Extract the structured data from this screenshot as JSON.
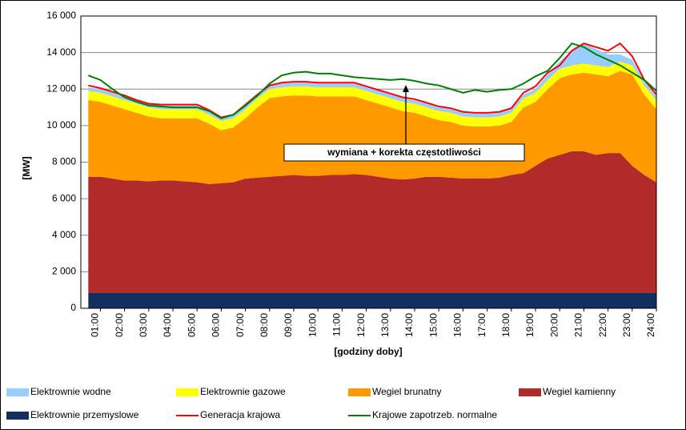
{
  "chart_data": {
    "type": "area",
    "stacked": true,
    "ylabel": "[MW]",
    "xlabel": "[godziny doby]",
    "annotations": [
      "wymiana + korekta częstotliwości"
    ],
    "grid": true,
    "legend": "bottom",
    "ylim": [
      0,
      16000
    ],
    "yticks": [
      0,
      {
        "value": 2000,
        "label": "2 000"
      },
      {
        "value": 4000,
        "label": "4 000"
      },
      {
        "value": 6000,
        "label": "6 000"
      },
      {
        "value": 8000,
        "label": "8 000"
      },
      {
        "value": 10000,
        "label": "10 000"
      },
      {
        "value": 12000,
        "label": "12 000"
      },
      {
        "value": 14000,
        "label": "14 000"
      },
      {
        "value": 16000,
        "label": "16 000"
      }
    ],
    "categories": [
      null,
      "01:00",
      null,
      "02:00",
      null,
      "03:00",
      null,
      "04:00",
      null,
      "05:00",
      null,
      "06:00",
      null,
      "07:00",
      null,
      "08:00",
      null,
      "09:00",
      null,
      "10:00",
      null,
      "11:00",
      null,
      "12:00",
      null,
      "13:00",
      null,
      "14:00",
      null,
      "15:00",
      null,
      "16:00",
      null,
      "17:00",
      null,
      "18:00",
      null,
      "19:00",
      null,
      "20:00",
      null,
      "21:00",
      null,
      "22:00",
      null,
      "23:00",
      null,
      "24:00"
    ],
    "series": [
      {
        "name": "Elektrownie wodne",
        "color": "#99ccff",
        "kind": "area",
        "stack_order": 4,
        "values": [
          200,
          200,
          200,
          200,
          200,
          200,
          200,
          200,
          200,
          200,
          200,
          200,
          200,
          200,
          200,
          200,
          200,
          200,
          200,
          200,
          200,
          200,
          200,
          200,
          200,
          200,
          200,
          200,
          200,
          200,
          200,
          200,
          200,
          200,
          200,
          200,
          200,
          200,
          300,
          400,
          800,
          1100,
          900,
          700,
          400,
          300,
          200,
          200
        ]
      },
      {
        "name": "Elektrownie gazowe",
        "color": "#ffff00",
        "kind": "area",
        "stack_order": 3,
        "values": [
          500,
          500,
          500,
          500,
          500,
          500,
          500,
          500,
          500,
          500,
          500,
          500,
          500,
          500,
          500,
          500,
          500,
          500,
          500,
          500,
          500,
          500,
          500,
          500,
          500,
          500,
          500,
          500,
          500,
          500,
          500,
          500,
          500,
          500,
          500,
          500,
          500,
          500,
          500,
          500,
          500,
          500,
          500,
          500,
          500,
          500,
          500,
          500
        ]
      },
      {
        "name": "Wegiel brunatny",
        "color": "#ff9900",
        "kind": "area",
        "stack_order": 2,
        "values": [
          4200,
          4100,
          4000,
          3900,
          3700,
          3550,
          3400,
          3400,
          3450,
          3500,
          3300,
          2900,
          3000,
          3300,
          3850,
          4300,
          4350,
          4350,
          4400,
          4350,
          4300,
          4300,
          4250,
          4100,
          4000,
          3900,
          3750,
          3600,
          3300,
          3100,
          3050,
          2900,
          2850,
          2850,
          2850,
          2900,
          3600,
          3500,
          3800,
          4200,
          4200,
          4300,
          4400,
          4200,
          4500,
          5000,
          4400,
          4000
        ]
      },
      {
        "name": "Wegiel kamienny",
        "color": "#b22a2a",
        "kind": "area",
        "stack_order": 1,
        "values": [
          6350,
          6350,
          6250,
          6150,
          6150,
          6100,
          6150,
          6150,
          6100,
          6050,
          5950,
          6000,
          6050,
          6250,
          6300,
          6350,
          6400,
          6450,
          6400,
          6400,
          6450,
          6450,
          6500,
          6450,
          6350,
          6250,
          6200,
          6250,
          6350,
          6350,
          6300,
          6250,
          6250,
          6250,
          6300,
          6450,
          6550,
          6950,
          7350,
          7550,
          7750,
          7750,
          7550,
          7650,
          7650,
          6950,
          6450,
          6050
        ]
      },
      {
        "name": "Elektrownie przemyslowe",
        "color": "#12305e",
        "kind": "area",
        "stack_order": 0,
        "values": [
          850,
          850,
          850,
          850,
          850,
          850,
          850,
          850,
          850,
          850,
          850,
          850,
          850,
          850,
          850,
          850,
          850,
          850,
          850,
          850,
          850,
          850,
          850,
          850,
          850,
          850,
          850,
          850,
          850,
          850,
          850,
          850,
          850,
          850,
          850,
          850,
          850,
          850,
          850,
          850,
          850,
          850,
          850,
          850,
          850,
          850,
          850,
          850
        ]
      },
      {
        "name": "Generacja krajowa",
        "color": "#ff0000",
        "kind": "line",
        "values": [
          12200,
          12050,
          11850,
          11650,
          11400,
          11200,
          11150,
          11150,
          11150,
          11150,
          10850,
          10450,
          10600,
          11150,
          11700,
          12200,
          12350,
          12400,
          12400,
          12350,
          12350,
          12350,
          12350,
          12150,
          11950,
          11750,
          11550,
          11450,
          11250,
          11050,
          10950,
          10750,
          10700,
          10700,
          10750,
          10950,
          11800,
          12150,
          12900,
          13300,
          14100,
          14500,
          14300,
          14100,
          14500,
          13800,
          12500,
          11700
        ]
      },
      {
        "name": "Krajowe zapotrzeb. normalne",
        "color": "#008000",
        "kind": "line",
        "values": [
          12750,
          12500,
          12000,
          11550,
          11300,
          11100,
          11050,
          11000,
          11000,
          11000,
          10800,
          10400,
          10600,
          11100,
          11650,
          12300,
          12750,
          12900,
          12950,
          12850,
          12850,
          12750,
          12650,
          12600,
          12550,
          12500,
          12550,
          12450,
          12300,
          12200,
          12000,
          11800,
          11950,
          11850,
          11950,
          12000,
          12300,
          12700,
          13000,
          13700,
          14500,
          14300,
          13900,
          13600,
          13300,
          12900,
          12500,
          11900
        ]
      }
    ]
  }
}
